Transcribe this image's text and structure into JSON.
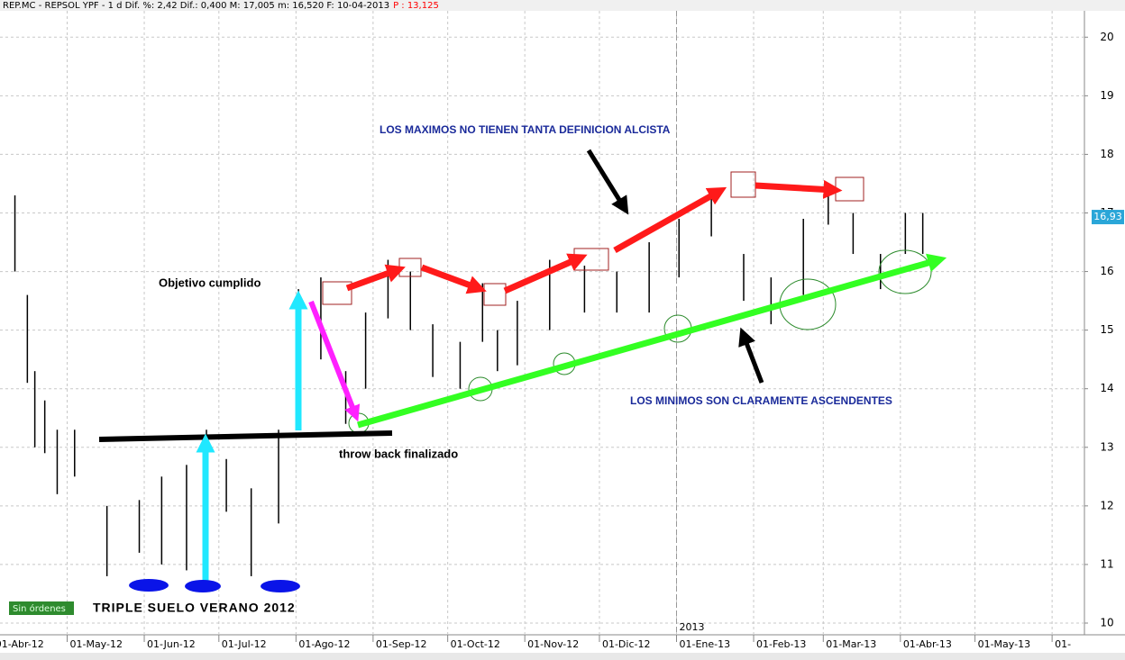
{
  "chart_data": {
    "type": "ohlc",
    "header": "REP.MC - REPSOL YPF -  1 d Dif. %: 2,42 Dif.: 0,400 M: 17,005 m: 16,520 F: 10-04-2013",
    "header_price": "P : 13,125",
    "x": [
      9,
      14,
      17,
      21,
      26,
      33,
      46,
      59,
      68,
      78,
      86,
      94,
      104,
      115,
      123,
      132,
      142,
      150,
      159,
      168,
      177,
      188,
      197,
      203,
      211,
      224,
      238,
      251,
      264,
      276,
      289,
      302,
      313,
      326,
      336,
      346,
      357,
      367,
      374
    ],
    "high": [
      17.3,
      15.6,
      14.3,
      13.8,
      13.3,
      13.3,
      12.0,
      12.1,
      12.5,
      12.7,
      13.3,
      12.8,
      12.3,
      13.3,
      15.7,
      15.9,
      14.3,
      15.3,
      16.2,
      16.0,
      15.1,
      14.8,
      15.8,
      15.0,
      15.5,
      16.2,
      16.1,
      16.0,
      16.5,
      16.9,
      17.4,
      16.3,
      15.9,
      16.9,
      17.4,
      17.0,
      16.3,
      17.0,
      17.0
    ],
    "low": [
      16.0,
      14.1,
      13.0,
      12.9,
      12.2,
      12.5,
      10.8,
      11.2,
      11.0,
      10.9,
      11.8,
      11.9,
      10.8,
      11.7,
      13.6,
      14.5,
      13.4,
      14.0,
      15.2,
      15.0,
      14.2,
      14.0,
      14.8,
      14.3,
      14.4,
      15.0,
      15.3,
      15.3,
      15.3,
      15.9,
      16.6,
      15.5,
      15.1,
      15.6,
      16.8,
      16.3,
      15.7,
      16.3,
      16.3
    ],
    "color": "#000000",
    "last_price": {
      "value": 16.93,
      "label": "16,93"
    },
    "ylim": [
      9.8,
      20.45
    ],
    "yticks": [
      10,
      11,
      12,
      13,
      14,
      15,
      16,
      17,
      18,
      19,
      20
    ],
    "xlim": [
      3,
      439
    ],
    "xticks": [
      {
        "value": 0,
        "label": "01-Abr-12"
      },
      {
        "value": 30,
        "label": "01-May-12"
      },
      {
        "value": 61,
        "label": "01-Jun-12"
      },
      {
        "value": 91,
        "label": "01-Jul-12"
      },
      {
        "value": 122,
        "label": "01-Ago-12"
      },
      {
        "value": 153,
        "label": "01-Sep-12"
      },
      {
        "value": 183,
        "label": "01-Oct-12"
      },
      {
        "value": 214,
        "label": "01-Nov-12"
      },
      {
        "value": 244,
        "label": "01-Dic-12"
      },
      {
        "value": 275,
        "label": "01-Ene-13"
      },
      {
        "value": 306,
        "label": "01-Feb-13"
      },
      {
        "value": 334,
        "label": "01-Mar-13"
      },
      {
        "value": 365,
        "label": "01-Abr-13"
      },
      {
        "value": 395,
        "label": "01-May-13"
      },
      {
        "value": 426,
        "label": "01-"
      }
    ],
    "grid": true,
    "year_marker": {
      "value": 275,
      "label": "2013"
    },
    "annotations": {
      "maximos": "LOS MAXIMOS NO TIENEN TANTA DEFINICION ALCISTA",
      "objetivo": "Objetivo cumplido",
      "throwback": "throw back finalizado",
      "minimos": "LOS MINIMOS SON CLARAMENTE ASCENDENTES",
      "triple": "TRIPLE SUELO VERANO 2012",
      "ordenes": "Sin órdenes"
    }
  }
}
